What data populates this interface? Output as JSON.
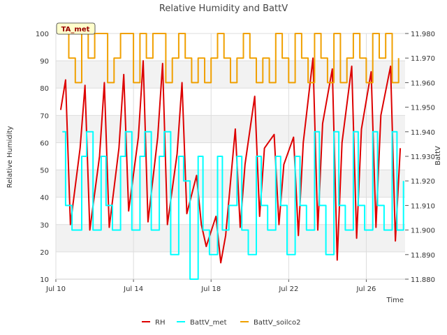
{
  "chart_data": {
    "type": "line",
    "title": "Relative Humidity and BattV",
    "xlabel": "Time",
    "ylabel": "Relative Humidity",
    "y2label": "BattV",
    "annotation": "TA_met",
    "xlim": [
      "2021-07-10",
      "2021-07-28"
    ],
    "x_ticks": [
      {
        "label": "Jul 10",
        "date": "2021-07-10"
      },
      {
        "label": "Jul 14",
        "date": "2021-07-14"
      },
      {
        "label": "Jul 18",
        "date": "2021-07-18"
      },
      {
        "label": "Jul 22",
        "date": "2021-07-22"
      },
      {
        "label": "Jul 26",
        "date": "2021-07-26"
      }
    ],
    "ylim": [
      10,
      100
    ],
    "y_ticks": [
      10,
      20,
      30,
      40,
      50,
      60,
      70,
      80,
      90,
      100
    ],
    "y2lim": [
      11.88,
      11.98
    ],
    "y2_ticks": [
      "11.880",
      "11.890",
      "11.900",
      "11.910",
      "11.920",
      "11.930",
      "11.940",
      "11.950",
      "11.960",
      "11.970",
      "11.980"
    ],
    "grid": true,
    "legend_position": "bottom",
    "series": [
      {
        "name": "RH",
        "axis": "left",
        "color": "#dd0000",
        "x": [
          "2021-07-10T06:00",
          "2021-07-10T12:00",
          "2021-07-10T18:00",
          "2021-07-11T06:00",
          "2021-07-11T12:00",
          "2021-07-11T18:00",
          "2021-07-12T06:00",
          "2021-07-12T12:00",
          "2021-07-12T18:00",
          "2021-07-13T06:00",
          "2021-07-13T12:00",
          "2021-07-13T18:00",
          "2021-07-14T06:00",
          "2021-07-14T12:00",
          "2021-07-14T18:00",
          "2021-07-15T06:00",
          "2021-07-15T12:00",
          "2021-07-15T18:00",
          "2021-07-16T06:00",
          "2021-07-16T12:00",
          "2021-07-16T18:00",
          "2021-07-17T06:00",
          "2021-07-17T12:00",
          "2021-07-17T18:00",
          "2021-07-18T06:00",
          "2021-07-18T12:00",
          "2021-07-18T18:00",
          "2021-07-19T06:00",
          "2021-07-19T12:00",
          "2021-07-19T18:00",
          "2021-07-20T06:00",
          "2021-07-20T12:00",
          "2021-07-20T18:00",
          "2021-07-21T06:00",
          "2021-07-21T12:00",
          "2021-07-21T18:00",
          "2021-07-22T06:00",
          "2021-07-22T12:00",
          "2021-07-22T18:00",
          "2021-07-23T06:00",
          "2021-07-23T12:00",
          "2021-07-23T18:00",
          "2021-07-24T06:00",
          "2021-07-24T12:00",
          "2021-07-24T18:00",
          "2021-07-25T06:00",
          "2021-07-25T12:00",
          "2021-07-25T18:00",
          "2021-07-26T06:00",
          "2021-07-26T12:00",
          "2021-07-26T18:00",
          "2021-07-27T06:00",
          "2021-07-27T12:00",
          "2021-07-27T18:00"
        ],
        "values": [
          72,
          83,
          30,
          58,
          81,
          28,
          55,
          82,
          29,
          58,
          85,
          35,
          62,
          90,
          31,
          62,
          89,
          30,
          56,
          82,
          34,
          48,
          30,
          22,
          33,
          16,
          26,
          65,
          29,
          52,
          77,
          33,
          58,
          63,
          30,
          52,
          62,
          26,
          60,
          91,
          28,
          67,
          87,
          17,
          60,
          88,
          25,
          65,
          86,
          29,
          70,
          88,
          24,
          58
        ]
      },
      {
        "name": "BattV_met",
        "axis": "right",
        "color": "#00ffff",
        "x": [
          "2021-07-10T08:00",
          "2021-07-10T12:00",
          "2021-07-10T20:00",
          "2021-07-11T08:00",
          "2021-07-11T14:00",
          "2021-07-11T22:00",
          "2021-07-12T08:00",
          "2021-07-12T14:00",
          "2021-07-12T22:00",
          "2021-07-13T08:00",
          "2021-07-13T14:00",
          "2021-07-13T22:00",
          "2021-07-14T08:00",
          "2021-07-14T14:00",
          "2021-07-14T22:00",
          "2021-07-15T08:00",
          "2021-07-15T14:00",
          "2021-07-15T22:00",
          "2021-07-16T08:00",
          "2021-07-16T14:00",
          "2021-07-16T22:00",
          "2021-07-17T08:00",
          "2021-07-17T14:00",
          "2021-07-17T22:00",
          "2021-07-18T08:00",
          "2021-07-18T14:00",
          "2021-07-18T22:00",
          "2021-07-19T08:00",
          "2021-07-19T14:00",
          "2021-07-19T22:00",
          "2021-07-20T08:00",
          "2021-07-20T14:00",
          "2021-07-20T22:00",
          "2021-07-21T08:00",
          "2021-07-21T14:00",
          "2021-07-21T22:00",
          "2021-07-22T08:00",
          "2021-07-22T14:00",
          "2021-07-22T22:00",
          "2021-07-23T08:00",
          "2021-07-23T14:00",
          "2021-07-23T22:00",
          "2021-07-24T08:00",
          "2021-07-24T14:00",
          "2021-07-24T22:00",
          "2021-07-25T08:00",
          "2021-07-25T14:00",
          "2021-07-25T22:00",
          "2021-07-26T08:00",
          "2021-07-26T14:00",
          "2021-07-26T22:00",
          "2021-07-27T08:00",
          "2021-07-27T14:00",
          "2021-07-27T22:00"
        ],
        "values": [
          11.94,
          11.91,
          11.9,
          11.93,
          11.94,
          11.9,
          11.93,
          11.91,
          11.9,
          11.93,
          11.94,
          11.9,
          11.93,
          11.94,
          11.9,
          11.93,
          11.94,
          11.89,
          11.93,
          11.92,
          11.88,
          11.93,
          11.9,
          11.89,
          11.93,
          11.9,
          11.91,
          11.93,
          11.9,
          11.89,
          11.93,
          11.91,
          11.9,
          11.93,
          11.91,
          11.89,
          11.93,
          11.91,
          11.9,
          11.94,
          11.91,
          11.89,
          11.94,
          11.91,
          11.9,
          11.94,
          11.91,
          11.9,
          11.94,
          11.91,
          11.9,
          11.94,
          11.9,
          11.92
        ]
      },
      {
        "name": "BattV_soilco2",
        "axis": "right",
        "color": "#f0a000",
        "x": [
          "2021-07-10T08:00",
          "2021-07-10T16:00",
          "2021-07-11T00:00",
          "2021-07-11T08:00",
          "2021-07-11T16:00",
          "2021-07-12T00:00",
          "2021-07-12T08:00",
          "2021-07-12T16:00",
          "2021-07-13T00:00",
          "2021-07-13T08:00",
          "2021-07-13T16:00",
          "2021-07-14T00:00",
          "2021-07-14T08:00",
          "2021-07-14T16:00",
          "2021-07-15T00:00",
          "2021-07-15T08:00",
          "2021-07-15T16:00",
          "2021-07-16T00:00",
          "2021-07-16T08:00",
          "2021-07-16T16:00",
          "2021-07-17T00:00",
          "2021-07-17T08:00",
          "2021-07-17T16:00",
          "2021-07-18T00:00",
          "2021-07-18T08:00",
          "2021-07-18T16:00",
          "2021-07-19T00:00",
          "2021-07-19T08:00",
          "2021-07-19T16:00",
          "2021-07-20T00:00",
          "2021-07-20T08:00",
          "2021-07-20T16:00",
          "2021-07-21T00:00",
          "2021-07-21T08:00",
          "2021-07-21T16:00",
          "2021-07-22T00:00",
          "2021-07-22T08:00",
          "2021-07-22T16:00",
          "2021-07-23T00:00",
          "2021-07-23T08:00",
          "2021-07-23T16:00",
          "2021-07-24T00:00",
          "2021-07-24T08:00",
          "2021-07-24T16:00",
          "2021-07-25T00:00",
          "2021-07-25T08:00",
          "2021-07-25T16:00",
          "2021-07-26T00:00",
          "2021-07-26T08:00",
          "2021-07-26T16:00",
          "2021-07-27T00:00",
          "2021-07-27T08:00",
          "2021-07-27T16:00"
        ],
        "values": [
          11.98,
          11.97,
          11.96,
          11.98,
          11.97,
          11.98,
          11.98,
          11.96,
          11.97,
          11.98,
          11.98,
          11.96,
          11.98,
          11.97,
          11.98,
          11.98,
          11.96,
          11.97,
          11.98,
          11.97,
          11.96,
          11.97,
          11.96,
          11.97,
          11.98,
          11.97,
          11.96,
          11.97,
          11.98,
          11.97,
          11.96,
          11.97,
          11.96,
          11.98,
          11.97,
          11.96,
          11.98,
          11.97,
          11.96,
          11.98,
          11.97,
          11.96,
          11.98,
          11.96,
          11.97,
          11.98,
          11.97,
          11.96,
          11.98,
          11.97,
          11.98,
          11.96,
          11.97
        ]
      }
    ]
  }
}
